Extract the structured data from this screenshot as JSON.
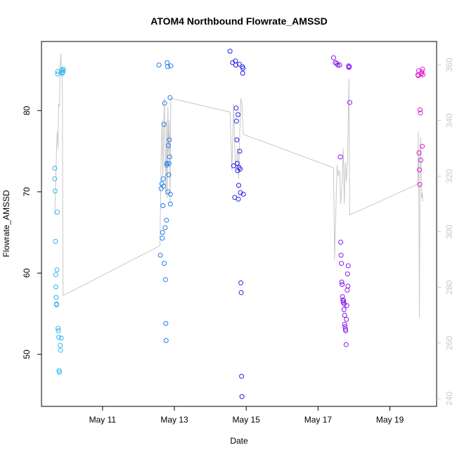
{
  "chart_data": {
    "type": "scatter",
    "title": "ATOM4 Northbound Flowrate_AMSSD",
    "xlabel": "Date",
    "ylabel": "Flowrate_AMSSD",
    "x_ticks": [
      "May 11",
      "May 13",
      "May 15",
      "May 17",
      "May 19"
    ],
    "x_tick_days": [
      11,
      13,
      15,
      17,
      19
    ],
    "xlim": [
      9.3,
      20.3
    ],
    "ylim": [
      43.6,
      88.5
    ],
    "y_ticks": [
      50,
      60,
      70,
      80
    ],
    "y2_ticks": [
      240,
      260,
      280,
      300,
      320,
      340,
      360
    ],
    "y2lim": [
      237.2,
      368.4
    ],
    "grid": false,
    "scatter_series": [
      {
        "color": "#2CB5F0",
        "x": [
          9.67,
          9.67,
          9.68,
          9.69,
          9.7,
          9.7,
          9.71,
          9.72,
          9.72,
          9.73,
          9.74,
          9.75,
          9.75,
          9.76,
          9.77,
          9.78,
          9.79,
          9.8,
          9.82,
          9.83,
          9.85,
          9.86,
          9.88,
          9.89,
          9.9,
          9.91
        ],
        "y": [
          72.9,
          71.6,
          70.1,
          63.9,
          59.8,
          58.3,
          57.0,
          56.2,
          56.1,
          60.4,
          67.5,
          84.8,
          84.5,
          53.2,
          52.9,
          52.1,
          48.0,
          47.8,
          51.1,
          50.5,
          52.0,
          85.0,
          84.6,
          84.7,
          84.9,
          85.1
        ]
      },
      {
        "color": "#1E7CF0",
        "x": [
          12.57,
          12.61,
          12.63,
          12.65,
          12.66,
          12.67,
          12.68,
          12.69,
          12.7,
          12.71,
          12.72,
          12.73,
          12.74,
          12.75,
          12.76,
          12.77,
          12.78,
          12.79,
          12.79,
          12.8,
          12.81,
          12.82,
          12.83,
          12.84,
          12.85,
          12.86,
          12.87,
          12.88,
          12.89,
          12.89,
          12.9
        ],
        "y": [
          85.6,
          62.2,
          70.4,
          71.0,
          64.3,
          65.0,
          68.3,
          71.6,
          70.7,
          78.3,
          61.2,
          80.9,
          65.6,
          59.2,
          53.8,
          51.7,
          66.5,
          73.3,
          73.5,
          85.9,
          85.4,
          70.0,
          75.7,
          72.1,
          73.5,
          76.4,
          74.3,
          81.6,
          68.5,
          69.7,
          85.5
        ]
      },
      {
        "color": "#2020E8",
        "x": [
          14.55,
          14.62,
          14.65,
          14.68,
          14.7,
          14.71,
          14.72,
          14.73,
          14.74,
          14.75,
          14.76,
          14.77,
          14.78,
          14.79,
          14.8,
          14.81,
          14.82,
          14.83,
          14.84,
          14.85,
          14.86,
          14.87,
          14.88,
          14.89,
          14.9,
          14.91,
          14.92
        ],
        "y": [
          87.3,
          85.9,
          73.2,
          69.3,
          86.1,
          85.6,
          80.3,
          78.7,
          76.4,
          73.5,
          72.6,
          79.5,
          69.1,
          70.8,
          73.0,
          85.7,
          75.0,
          72.8,
          69.9,
          58.8,
          57.6,
          47.3,
          44.8,
          85.4,
          84.6,
          85.2,
          69.7
        ]
      },
      {
        "color": "#8A18F0",
        "x": [
          17.43,
          17.48,
          17.52,
          17.55,
          17.6,
          17.62,
          17.63,
          17.64,
          17.65,
          17.66,
          17.67,
          17.68,
          17.69,
          17.7,
          17.71,
          17.72,
          17.73,
          17.74,
          17.74,
          17.75,
          17.76,
          17.77,
          17.78,
          17.79,
          17.8,
          17.81,
          17.82,
          17.83,
          17.84,
          17.85,
          17.86,
          17.87,
          17.88
        ],
        "y": [
          86.5,
          85.9,
          85.8,
          85.6,
          85.6,
          74.3,
          63.8,
          62.2,
          61.2,
          58.9,
          58.6,
          57.1,
          56.7,
          56.4,
          56.6,
          55.5,
          56.2,
          54.8,
          53.7,
          53.4,
          53.1,
          52.9,
          51.2,
          54.3,
          56.0,
          57.9,
          59.9,
          58.4,
          60.9,
          85.5,
          85.3,
          85.4,
          81.0
        ]
      },
      {
        "color": "#E020D0",
        "x": [
          19.78,
          19.79,
          19.8,
          19.81,
          19.82,
          19.83,
          19.84,
          19.85,
          19.86,
          19.87,
          19.88,
          19.89,
          19.9,
          19.91,
          19.92
        ],
        "y": [
          84.4,
          84.3,
          84.9,
          74.8,
          72.7,
          70.9,
          80.1,
          79.7,
          73.9,
          84.5,
          84.6,
          84.8,
          75.6,
          85.1,
          84.4
        ]
      }
    ],
    "line_series": {
      "color": "#C8C8C8",
      "axis": "right",
      "x": [
        9.67,
        9.7,
        9.72,
        9.74,
        9.76,
        9.78,
        9.8,
        9.82,
        9.84,
        9.86,
        9.88,
        9.9,
        12.6,
        12.63,
        12.66,
        12.68,
        12.7,
        12.72,
        12.74,
        12.76,
        12.78,
        12.8,
        12.82,
        12.84,
        12.86,
        12.88,
        12.9,
        14.55,
        14.6,
        14.65,
        14.7,
        14.73,
        14.76,
        14.79,
        14.82,
        14.85,
        14.88,
        14.92,
        17.43,
        17.46,
        17.5,
        17.53,
        17.56,
        17.6,
        17.63,
        17.67,
        17.7,
        17.73,
        17.76,
        17.79,
        17.82,
        17.86,
        17.88,
        19.76,
        19.78,
        19.79,
        19.8,
        19.81,
        19.82,
        19.84,
        19.86,
        19.88,
        19.9,
        19.92
      ],
      "y": [
        306,
        320,
        330,
        336,
        330,
        346,
        345,
        360,
        364,
        356,
        356,
        277,
        295,
        326,
        340,
        320,
        335,
        348,
        330,
        313,
        340,
        312,
        345,
        328,
        340,
        310,
        348,
        343,
        322,
        346,
        322,
        326,
        330,
        319,
        335,
        348,
        346,
        335,
        323,
        290,
        310,
        324,
        320,
        322,
        310,
        318,
        330,
        310,
        325,
        318,
        326,
        355,
        306,
        317,
        320,
        336,
        322,
        300,
        269,
        328,
        334,
        312,
        314,
        311
      ]
    }
  }
}
